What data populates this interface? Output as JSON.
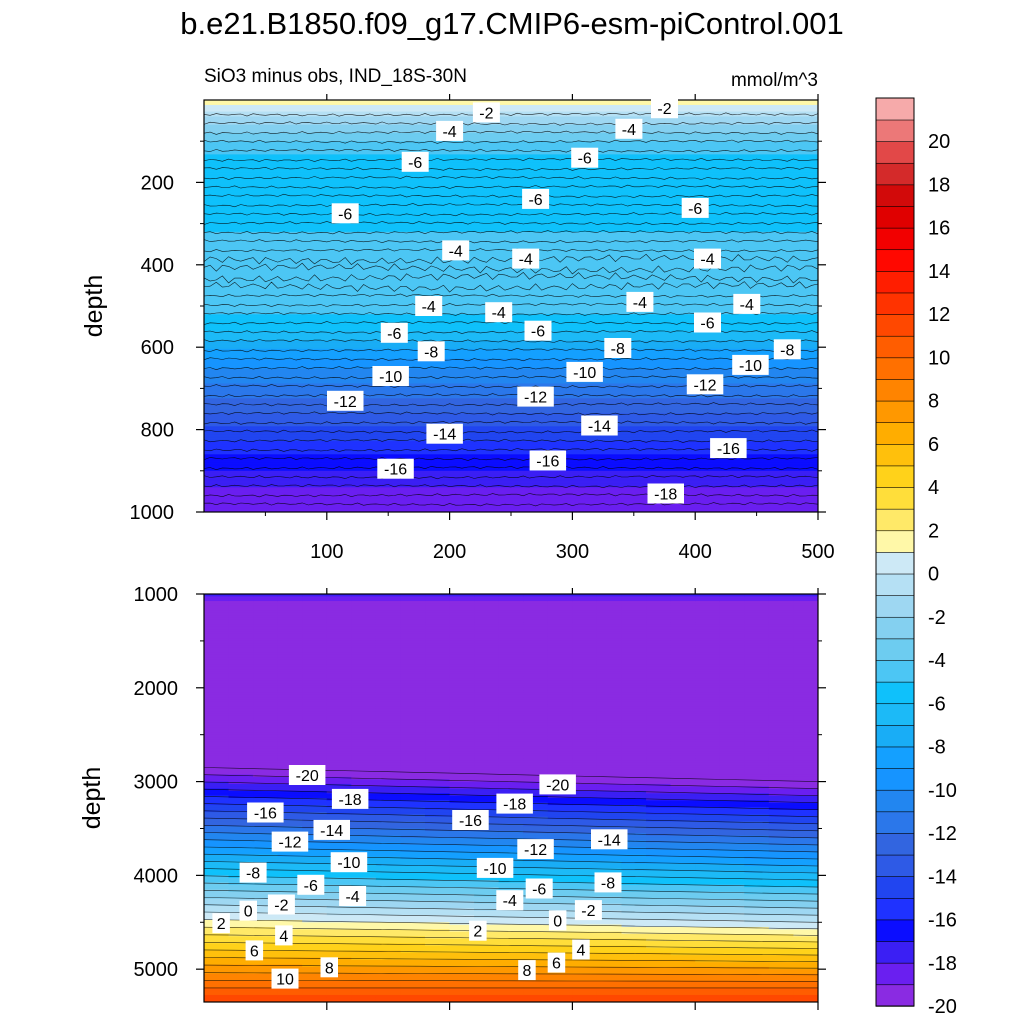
{
  "title": "b.e21.B1850.f09_g17.CMIP6-esm-piControl.001",
  "colorbar": {
    "levels": [
      -20,
      -19,
      -18,
      -17,
      -16,
      -15,
      -14,
      -13,
      -12,
      -11,
      -10,
      -9,
      -8,
      -7,
      -6,
      -5,
      -4,
      -3,
      -2,
      -1,
      0,
      1,
      2,
      3,
      4,
      5,
      6,
      7,
      8,
      9,
      10,
      11,
      12,
      13,
      14,
      15,
      16,
      17,
      18,
      19,
      20,
      21
    ],
    "tick_labels": [
      "-20",
      "-18",
      "-16",
      "-14",
      "-12",
      "-10",
      "-8",
      "-6",
      "-4",
      "-2",
      "0",
      "2",
      "4",
      "6",
      "8",
      "10",
      "12",
      "14",
      "16",
      "18",
      "20"
    ],
    "colors": [
      "#8a2be2",
      "#6a1ff0",
      "#3b1ff4",
      "#0b0dff",
      "#1f32ff",
      "#2145f0",
      "#2e5ae6",
      "#3265e0",
      "#2b77ea",
      "#2286f0",
      "#1694ff",
      "#14a0ff",
      "#19adf6",
      "#1cbaf7",
      "#0fc1fb",
      "#4cc6f4",
      "#6dccf0",
      "#84d0f0",
      "#9ed7f2",
      "#b5e0f4",
      "#cde9f6",
      "#fff8a8",
      "#ffe968",
      "#ffde3a",
      "#ffd21a",
      "#ffc00c",
      "#ffad00",
      "#ff9800",
      "#ff8400",
      "#ff7000",
      "#ff5d00",
      "#ff4800",
      "#ff3300",
      "#ff1e00",
      "#ff0800",
      "#f20000",
      "#e00000",
      "#d20a0a",
      "#d42a2a",
      "#e24848",
      "#ec7878",
      "#f6aaaa"
    ]
  },
  "chart_data": [
    {
      "type": "contour",
      "subtitle": "SiO3 minus obs, IND_18S-30N",
      "units": "mmol/m^3",
      "ylabel": "depth",
      "xlabel": "",
      "xlim": [
        0,
        500
      ],
      "ylim": [
        1000,
        0
      ],
      "xticks": [
        "100",
        "200",
        "300",
        "400",
        "500"
      ],
      "yticks": [
        "200",
        "400",
        "600",
        "800",
        "1000"
      ],
      "profile": [
        {
          "depth": 0,
          "value": 2
        },
        {
          "depth": 40,
          "value": -1
        },
        {
          "depth": 100,
          "value": -4
        },
        {
          "depth": 160,
          "value": -6
        },
        {
          "depth": 260,
          "value": -6
        },
        {
          "depth": 350,
          "value": -4.5
        },
        {
          "depth": 440,
          "value": -4
        },
        {
          "depth": 500,
          "value": -4.5
        },
        {
          "depth": 560,
          "value": -6
        },
        {
          "depth": 650,
          "value": -10
        },
        {
          "depth": 760,
          "value": -13
        },
        {
          "depth": 860,
          "value": -16
        },
        {
          "depth": 940,
          "value": -18
        },
        {
          "depth": 1000,
          "value": -19
        }
      ],
      "contour_labels": [
        {
          "text": "-2",
          "x": 230,
          "depth": 30
        },
        {
          "text": "-2",
          "x": 375,
          "depth": 20
        },
        {
          "text": "-4",
          "x": 200,
          "depth": 75
        },
        {
          "text": "-4",
          "x": 346,
          "depth": 70
        },
        {
          "text": "-6",
          "x": 172,
          "depth": 150
        },
        {
          "text": "-6",
          "x": 310,
          "depth": 140
        },
        {
          "text": "-6",
          "x": 115,
          "depth": 275
        },
        {
          "text": "-6",
          "x": 270,
          "depth": 240
        },
        {
          "text": "-6",
          "x": 400,
          "depth": 262
        },
        {
          "text": "-4",
          "x": 205,
          "depth": 365
        },
        {
          "text": "-4",
          "x": 262,
          "depth": 385
        },
        {
          "text": "-4",
          "x": 410,
          "depth": 385
        },
        {
          "text": "-4",
          "x": 183,
          "depth": 500
        },
        {
          "text": "-4",
          "x": 240,
          "depth": 515
        },
        {
          "text": "-4",
          "x": 355,
          "depth": 490
        },
        {
          "text": "-4",
          "x": 442,
          "depth": 495
        },
        {
          "text": "-6",
          "x": 155,
          "depth": 565
        },
        {
          "text": "-6",
          "x": 272,
          "depth": 560
        },
        {
          "text": "-6",
          "x": 410,
          "depth": 540
        },
        {
          "text": "-8",
          "x": 185,
          "depth": 610
        },
        {
          "text": "-8",
          "x": 337,
          "depth": 602
        },
        {
          "text": "-8",
          "x": 475,
          "depth": 605
        },
        {
          "text": "-10",
          "x": 152,
          "depth": 670
        },
        {
          "text": "-10",
          "x": 310,
          "depth": 660
        },
        {
          "text": "-10",
          "x": 445,
          "depth": 643
        },
        {
          "text": "-12",
          "x": 115,
          "depth": 730
        },
        {
          "text": "-12",
          "x": 270,
          "depth": 720
        },
        {
          "text": "-12",
          "x": 408,
          "depth": 690
        },
        {
          "text": "-14",
          "x": 196,
          "depth": 810
        },
        {
          "text": "-14",
          "x": 322,
          "depth": 790
        },
        {
          "text": "-16",
          "x": 156,
          "depth": 895
        },
        {
          "text": "-16",
          "x": 280,
          "depth": 875
        },
        {
          "text": "-16",
          "x": 427,
          "depth": 845
        },
        {
          "text": "-18",
          "x": 376,
          "depth": 955
        }
      ]
    },
    {
      "type": "contour",
      "subtitle": "",
      "units": "",
      "ylabel": "depth",
      "xlabel": "",
      "xlim": [
        0,
        500
      ],
      "ylim": [
        5350,
        1000
      ],
      "xticks": [],
      "yticks": [
        "1000",
        "2000",
        "3000",
        "4000",
        "5000"
      ],
      "contour_labels": [
        {
          "text": "-20",
          "x": 84,
          "depth": 2930
        },
        {
          "text": "-20",
          "x": 288,
          "depth": 3030
        },
        {
          "text": "-18",
          "x": 119,
          "depth": 3185
        },
        {
          "text": "-18",
          "x": 253,
          "depth": 3235
        },
        {
          "text": "-16",
          "x": 50,
          "depth": 3330
        },
        {
          "text": "-16",
          "x": 217,
          "depth": 3410
        },
        {
          "text": "-14",
          "x": 104,
          "depth": 3515
        },
        {
          "text": "-14",
          "x": 330,
          "depth": 3615
        },
        {
          "text": "-12",
          "x": 70,
          "depth": 3640
        },
        {
          "text": "-12",
          "x": 270,
          "depth": 3720
        },
        {
          "text": "-10",
          "x": 118,
          "depth": 3860
        },
        {
          "text": "-10",
          "x": 237,
          "depth": 3920
        },
        {
          "text": "-8",
          "x": 40,
          "depth": 3970
        },
        {
          "text": "-8",
          "x": 329,
          "depth": 4075
        },
        {
          "text": "-6",
          "x": 87,
          "depth": 4100
        },
        {
          "text": "-6",
          "x": 273,
          "depth": 4140
        },
        {
          "text": "-4",
          "x": 121,
          "depth": 4220
        },
        {
          "text": "-4",
          "x": 249,
          "depth": 4265
        },
        {
          "text": "-2",
          "x": 63,
          "depth": 4310
        },
        {
          "text": "-2",
          "x": 313,
          "depth": 4370
        },
        {
          "text": "0",
          "x": 36,
          "depth": 4375
        },
        {
          "text": "0",
          "x": 288,
          "depth": 4480
        },
        {
          "text": "2",
          "x": 14,
          "depth": 4510
        },
        {
          "text": "2",
          "x": 223,
          "depth": 4590
        },
        {
          "text": "4",
          "x": 65,
          "depth": 4640
        },
        {
          "text": "4",
          "x": 307,
          "depth": 4790
        },
        {
          "text": "6",
          "x": 41,
          "depth": 4800
        },
        {
          "text": "6",
          "x": 287,
          "depth": 4930
        },
        {
          "text": "8",
          "x": 102,
          "depth": 4980
        },
        {
          "text": "8",
          "x": 263,
          "depth": 5010
        },
        {
          "text": "10",
          "x": 66,
          "depth": 5100
        }
      ]
    }
  ]
}
